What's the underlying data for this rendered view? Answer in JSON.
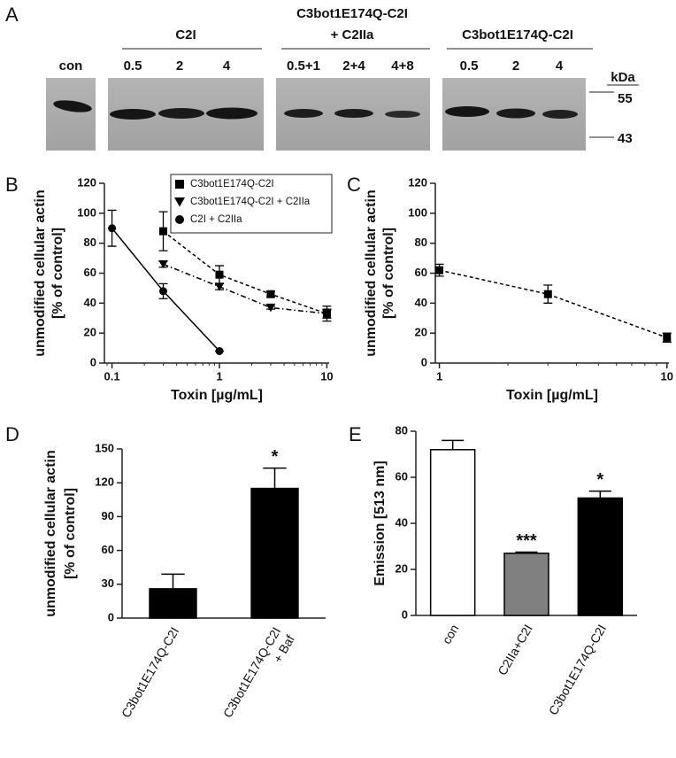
{
  "blot": {
    "panel": "A",
    "control_lane": "con",
    "groups": [
      {
        "title": [
          "C2I"
        ],
        "lanes": [
          "0.5",
          "2",
          "4"
        ]
      },
      {
        "title": [
          "C3bot1E174Q-C2I",
          "+ C2IIa"
        ],
        "lanes": [
          "0.5+1",
          "2+4",
          "4+8"
        ]
      },
      {
        "title": [
          "C3bot1E174Q-C2I"
        ],
        "lanes": [
          "0.5",
          "2",
          "4"
        ]
      }
    ],
    "unit": "kDa",
    "size_markers": [
      "55",
      "43"
    ]
  },
  "chart_data": [
    {
      "panel": "B",
      "type": "line",
      "xscale": "log",
      "xlabel": "Toxin [µg/mL]",
      "ylabel": [
        "unmodified cellular actin",
        "[% of control]"
      ],
      "xlim": [
        0.085,
        10.5
      ],
      "xticks": [
        0.1,
        1,
        10
      ],
      "ylim": [
        0,
        120
      ],
      "yticks": [
        0,
        20,
        40,
        60,
        80,
        100,
        120
      ],
      "legend": "upper right",
      "series": [
        {
          "name": "C3bot1E174Q-C2I",
          "color": "#000000",
          "marker": "square",
          "line_style": "dashed",
          "x": [
            0.3,
            1,
            3,
            10
          ],
          "values": [
            88,
            59,
            46,
            33
          ],
          "errors": [
            13,
            6,
            2,
            5
          ]
        },
        {
          "name": "C3bot1E174Q-C2I + C2IIa",
          "color": "#000000",
          "marker": "triangle-down",
          "line_style": "dashdot",
          "x": [
            0.3,
            1,
            3,
            10
          ],
          "values": [
            66,
            51,
            37,
            33
          ],
          "errors": [
            2,
            2,
            1,
            3
          ]
        },
        {
          "name": "C2I + C2IIa",
          "color": "#000000",
          "marker": "circle",
          "line_style": "solid",
          "x": [
            0.1,
            0.3,
            1
          ],
          "values": [
            90,
            48,
            8
          ],
          "errors": [
            12,
            5,
            0
          ]
        }
      ]
    },
    {
      "panel": "C",
      "type": "line",
      "xscale": "log",
      "xlabel": "Toxin [µg/mL]",
      "ylabel": [
        "unmodified cellular actin",
        "[% of control]"
      ],
      "xlim": [
        0.96,
        10.2
      ],
      "xticks": [
        1,
        10
      ],
      "ylim": [
        0,
        120
      ],
      "yticks": [
        0,
        20,
        40,
        60,
        80,
        100,
        120
      ],
      "series": [
        {
          "color": "#000000",
          "marker": "square",
          "line_style": "dashed",
          "x": [
            1,
            3,
            10
          ],
          "values": [
            62,
            46,
            17
          ],
          "errors": [
            4,
            6,
            3
          ]
        }
      ]
    },
    {
      "panel": "D",
      "type": "bar",
      "ylabel": [
        "unmodified cellular actin",
        "[% of control]"
      ],
      "categories": [
        [
          "C3bot1E174Q-C2I"
        ],
        [
          "C3bot1E174Q-C2I",
          "+ Baf"
        ]
      ],
      "values": [
        26,
        115
      ],
      "errors": [
        13,
        18
      ],
      "colors": [
        "#000000",
        "#000000"
      ],
      "annotations": [
        null,
        "*"
      ],
      "ylim": [
        0,
        150
      ],
      "yticks": [
        0,
        30,
        60,
        90,
        120,
        150
      ]
    },
    {
      "panel": "E",
      "type": "bar",
      "ylabel": [
        "Emission [513 nm]"
      ],
      "categories": [
        [
          "con"
        ],
        [
          "C2IIa+C2I"
        ],
        [
          "C3bot1E174Q-C2I"
        ]
      ],
      "values": [
        72,
        27,
        51
      ],
      "errors": [
        4,
        0.5,
        3
      ],
      "colors": [
        "#ffffff",
        "#808080",
        "#000000"
      ],
      "annotations": [
        null,
        "***",
        "*"
      ],
      "ylim": [
        0,
        80
      ],
      "yticks": [
        0,
        20,
        40,
        60,
        80
      ]
    }
  ]
}
